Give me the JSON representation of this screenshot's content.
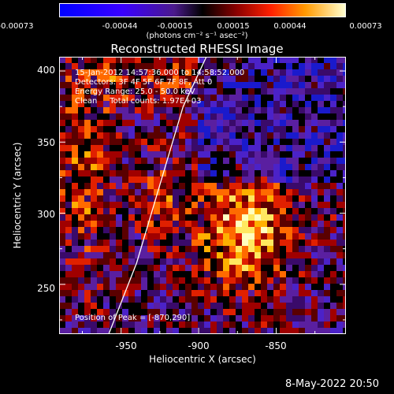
{
  "colorbar": {
    "ticks": [
      "-0.00073",
      "-0.00044",
      "-0.00015",
      "0.00015",
      "0.00044",
      "0.00073"
    ],
    "units": "(photons cm⁻² s⁻¹ asec⁻²)"
  },
  "title": "Reconstructed RHESSI Image",
  "annotation": {
    "time": "15-Jan-2012 14:57:36.000 to 14:58:52.000",
    "detectors": "Detectors: 3F 4F 5F 6F 7F 8F, Att 0",
    "energy": "Energy Range: 25.0 - 50.0 keV",
    "clean": "Clean     Total counts: 1.97E+03",
    "peak": "Position of Peak = [-870,290]"
  },
  "chart_data": {
    "type": "heatmap",
    "title": "Reconstructed RHESSI Image",
    "xlabel": "Heliocentric X (arcsec)",
    "ylabel": "Heliocentric Y (arcsec)",
    "xlim": [
      -990,
      -805
    ],
    "ylim": [
      215,
      410
    ],
    "xticks": [
      -950,
      -900,
      -850
    ],
    "yticks": [
      250,
      300,
      350,
      400
    ],
    "colorbar_range": [
      -0.00073,
      0.00073
    ],
    "peak_position": [
      -870,
      290
    ],
    "limb_curve_points": [
      [
        -958,
        215
      ],
      [
        -940,
        265
      ],
      [
        -925,
        320
      ],
      [
        -910,
        375
      ],
      [
        -895,
        410
      ]
    ]
  },
  "footer": {
    "date": "8-May-2022 20:50"
  },
  "colors": {
    "background": "#000000",
    "axes": "#ffffff",
    "limb": "#ffffff"
  }
}
